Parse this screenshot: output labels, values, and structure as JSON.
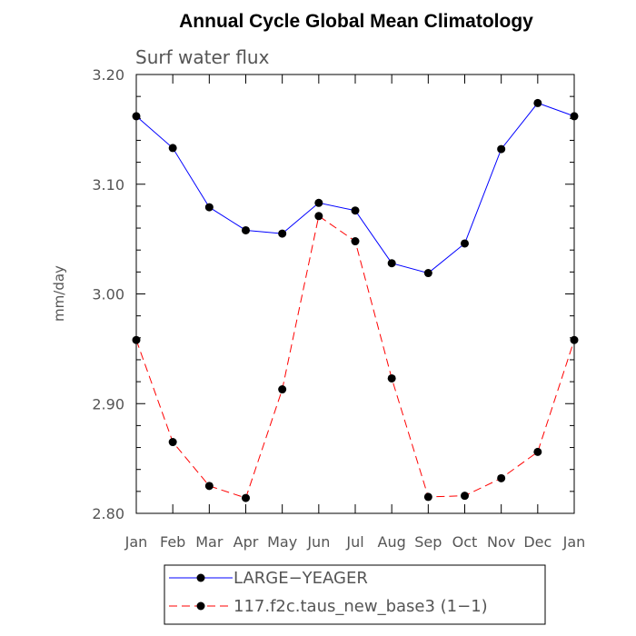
{
  "chart_data": {
    "type": "line",
    "title": "Annual Cycle Global Mean Climatology",
    "subtitle": "Surf water flux",
    "xlabel": "",
    "ylabel": "mm/day",
    "categories": [
      "Jan",
      "Feb",
      "Mar",
      "Apr",
      "May",
      "Jun",
      "Jul",
      "Aug",
      "Sep",
      "Oct",
      "Nov",
      "Dec",
      "Jan"
    ],
    "ylim": [
      2.8,
      3.2
    ],
    "yticks": [
      2.8,
      2.9,
      3.0,
      3.1,
      3.2
    ],
    "ytick_labels": [
      "2.80",
      "2.90",
      "3.00",
      "3.10",
      "3.20"
    ],
    "series": [
      {
        "name": "LARGE−YEAGER",
        "color": "#0000ff",
        "dash": "solid",
        "values": [
          3.162,
          3.133,
          3.079,
          3.058,
          3.055,
          3.083,
          3.076,
          3.028,
          3.019,
          3.046,
          3.132,
          3.174,
          3.162
        ]
      },
      {
        "name": "117.f2c.taus_new_base3 (1−1)",
        "color": "#ff0000",
        "dash": "dashed",
        "values": [
          2.958,
          2.865,
          2.825,
          2.814,
          2.913,
          3.071,
          3.048,
          2.923,
          2.815,
          2.816,
          2.832,
          2.856,
          2.958
        ]
      }
    ],
    "legend_position": "bottom"
  }
}
